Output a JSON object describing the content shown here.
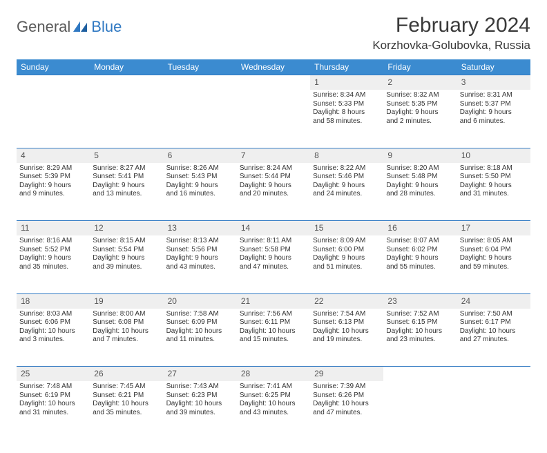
{
  "logo": {
    "general": "General",
    "blue": "Blue"
  },
  "title": "February 2024",
  "location": "Korzhovka-Golubovka, Russia",
  "colors": {
    "header_bg": "#3b8bd0",
    "header_text": "#ffffff",
    "daynum_bg": "#efefef",
    "border": "#2f78c2",
    "text": "#333333"
  },
  "weekdays": [
    "Sunday",
    "Monday",
    "Tuesday",
    "Wednesday",
    "Thursday",
    "Friday",
    "Saturday"
  ],
  "weeks": [
    {
      "nums": [
        "",
        "",
        "",
        "",
        "1",
        "2",
        "3"
      ],
      "cells": [
        null,
        null,
        null,
        null,
        {
          "sunrise": "Sunrise: 8:34 AM",
          "sunset": "Sunset: 5:33 PM",
          "day1": "Daylight: 8 hours",
          "day2": "and 58 minutes."
        },
        {
          "sunrise": "Sunrise: 8:32 AM",
          "sunset": "Sunset: 5:35 PM",
          "day1": "Daylight: 9 hours",
          "day2": "and 2 minutes."
        },
        {
          "sunrise": "Sunrise: 8:31 AM",
          "sunset": "Sunset: 5:37 PM",
          "day1": "Daylight: 9 hours",
          "day2": "and 6 minutes."
        }
      ]
    },
    {
      "nums": [
        "4",
        "5",
        "6",
        "7",
        "8",
        "9",
        "10"
      ],
      "cells": [
        {
          "sunrise": "Sunrise: 8:29 AM",
          "sunset": "Sunset: 5:39 PM",
          "day1": "Daylight: 9 hours",
          "day2": "and 9 minutes."
        },
        {
          "sunrise": "Sunrise: 8:27 AM",
          "sunset": "Sunset: 5:41 PM",
          "day1": "Daylight: 9 hours",
          "day2": "and 13 minutes."
        },
        {
          "sunrise": "Sunrise: 8:26 AM",
          "sunset": "Sunset: 5:43 PM",
          "day1": "Daylight: 9 hours",
          "day2": "and 16 minutes."
        },
        {
          "sunrise": "Sunrise: 8:24 AM",
          "sunset": "Sunset: 5:44 PM",
          "day1": "Daylight: 9 hours",
          "day2": "and 20 minutes."
        },
        {
          "sunrise": "Sunrise: 8:22 AM",
          "sunset": "Sunset: 5:46 PM",
          "day1": "Daylight: 9 hours",
          "day2": "and 24 minutes."
        },
        {
          "sunrise": "Sunrise: 8:20 AM",
          "sunset": "Sunset: 5:48 PM",
          "day1": "Daylight: 9 hours",
          "day2": "and 28 minutes."
        },
        {
          "sunrise": "Sunrise: 8:18 AM",
          "sunset": "Sunset: 5:50 PM",
          "day1": "Daylight: 9 hours",
          "day2": "and 31 minutes."
        }
      ]
    },
    {
      "nums": [
        "11",
        "12",
        "13",
        "14",
        "15",
        "16",
        "17"
      ],
      "cells": [
        {
          "sunrise": "Sunrise: 8:16 AM",
          "sunset": "Sunset: 5:52 PM",
          "day1": "Daylight: 9 hours",
          "day2": "and 35 minutes."
        },
        {
          "sunrise": "Sunrise: 8:15 AM",
          "sunset": "Sunset: 5:54 PM",
          "day1": "Daylight: 9 hours",
          "day2": "and 39 minutes."
        },
        {
          "sunrise": "Sunrise: 8:13 AM",
          "sunset": "Sunset: 5:56 PM",
          "day1": "Daylight: 9 hours",
          "day2": "and 43 minutes."
        },
        {
          "sunrise": "Sunrise: 8:11 AM",
          "sunset": "Sunset: 5:58 PM",
          "day1": "Daylight: 9 hours",
          "day2": "and 47 minutes."
        },
        {
          "sunrise": "Sunrise: 8:09 AM",
          "sunset": "Sunset: 6:00 PM",
          "day1": "Daylight: 9 hours",
          "day2": "and 51 minutes."
        },
        {
          "sunrise": "Sunrise: 8:07 AM",
          "sunset": "Sunset: 6:02 PM",
          "day1": "Daylight: 9 hours",
          "day2": "and 55 minutes."
        },
        {
          "sunrise": "Sunrise: 8:05 AM",
          "sunset": "Sunset: 6:04 PM",
          "day1": "Daylight: 9 hours",
          "day2": "and 59 minutes."
        }
      ]
    },
    {
      "nums": [
        "18",
        "19",
        "20",
        "21",
        "22",
        "23",
        "24"
      ],
      "cells": [
        {
          "sunrise": "Sunrise: 8:03 AM",
          "sunset": "Sunset: 6:06 PM",
          "day1": "Daylight: 10 hours",
          "day2": "and 3 minutes."
        },
        {
          "sunrise": "Sunrise: 8:00 AM",
          "sunset": "Sunset: 6:08 PM",
          "day1": "Daylight: 10 hours",
          "day2": "and 7 minutes."
        },
        {
          "sunrise": "Sunrise: 7:58 AM",
          "sunset": "Sunset: 6:09 PM",
          "day1": "Daylight: 10 hours",
          "day2": "and 11 minutes."
        },
        {
          "sunrise": "Sunrise: 7:56 AM",
          "sunset": "Sunset: 6:11 PM",
          "day1": "Daylight: 10 hours",
          "day2": "and 15 minutes."
        },
        {
          "sunrise": "Sunrise: 7:54 AM",
          "sunset": "Sunset: 6:13 PM",
          "day1": "Daylight: 10 hours",
          "day2": "and 19 minutes."
        },
        {
          "sunrise": "Sunrise: 7:52 AM",
          "sunset": "Sunset: 6:15 PM",
          "day1": "Daylight: 10 hours",
          "day2": "and 23 minutes."
        },
        {
          "sunrise": "Sunrise: 7:50 AM",
          "sunset": "Sunset: 6:17 PM",
          "day1": "Daylight: 10 hours",
          "day2": "and 27 minutes."
        }
      ]
    },
    {
      "nums": [
        "25",
        "26",
        "27",
        "28",
        "29",
        "",
        ""
      ],
      "cells": [
        {
          "sunrise": "Sunrise: 7:48 AM",
          "sunset": "Sunset: 6:19 PM",
          "day1": "Daylight: 10 hours",
          "day2": "and 31 minutes."
        },
        {
          "sunrise": "Sunrise: 7:45 AM",
          "sunset": "Sunset: 6:21 PM",
          "day1": "Daylight: 10 hours",
          "day2": "and 35 minutes."
        },
        {
          "sunrise": "Sunrise: 7:43 AM",
          "sunset": "Sunset: 6:23 PM",
          "day1": "Daylight: 10 hours",
          "day2": "and 39 minutes."
        },
        {
          "sunrise": "Sunrise: 7:41 AM",
          "sunset": "Sunset: 6:25 PM",
          "day1": "Daylight: 10 hours",
          "day2": "and 43 minutes."
        },
        {
          "sunrise": "Sunrise: 7:39 AM",
          "sunset": "Sunset: 6:26 PM",
          "day1": "Daylight: 10 hours",
          "day2": "and 47 minutes."
        },
        null,
        null
      ]
    }
  ]
}
